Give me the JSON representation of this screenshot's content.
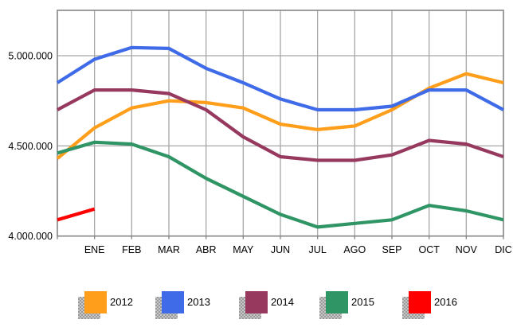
{
  "chart_data": {
    "type": "line",
    "title": "",
    "xlabel": "",
    "ylabel": "",
    "categories": [
      "",
      "ENE",
      "FEB",
      "MAR",
      "ABR",
      "MAY",
      "JUN",
      "JUL",
      "AGO",
      "SEP",
      "OCT",
      "NOV",
      "DIC"
    ],
    "x_note": "first point of each series sits on the left axis before the ENE gridline",
    "y_axis": {
      "tick_labels": [
        "5.000.000",
        "4.500.000",
        "4.000.000"
      ],
      "tick_values": [
        5000000,
        4500000,
        4000000
      ],
      "top": 5250000,
      "bottom": 4000000
    },
    "grid": true,
    "legend_position": "bottom",
    "grid_color": "#a6a6a6",
    "border_color": "#858585",
    "series": [
      {
        "name": "2012",
        "color": "#FF9E1A",
        "values": [
          4430000,
          4600000,
          4710000,
          4750000,
          4740000,
          4710000,
          4620000,
          4590000,
          4610000,
          4700000,
          4820000,
          4900000,
          4850000
        ]
      },
      {
        "name": "2013",
        "color": "#3F6BE8",
        "values": [
          4850000,
          4980000,
          5045000,
          5040000,
          4930000,
          4850000,
          4760000,
          4700000,
          4700000,
          4720000,
          4810000,
          4810000,
          4700000
        ]
      },
      {
        "name": "2014",
        "color": "#97395F",
        "values": [
          4700000,
          4810000,
          4810000,
          4790000,
          4700000,
          4550000,
          4440000,
          4420000,
          4420000,
          4450000,
          4530000,
          4510000,
          4440000
        ]
      },
      {
        "name": "2015",
        "color": "#2F9565",
        "values": [
          4460000,
          4520000,
          4510000,
          4440000,
          4320000,
          4220000,
          4120000,
          4050000,
          4070000,
          4090000,
          4170000,
          4140000,
          4090000
        ]
      },
      {
        "name": "2016",
        "color": "#FF0000",
        "values": [
          4090000,
          4150000,
          null,
          null,
          null,
          null,
          null,
          null,
          null,
          null,
          null,
          null,
          null
        ]
      }
    ]
  }
}
